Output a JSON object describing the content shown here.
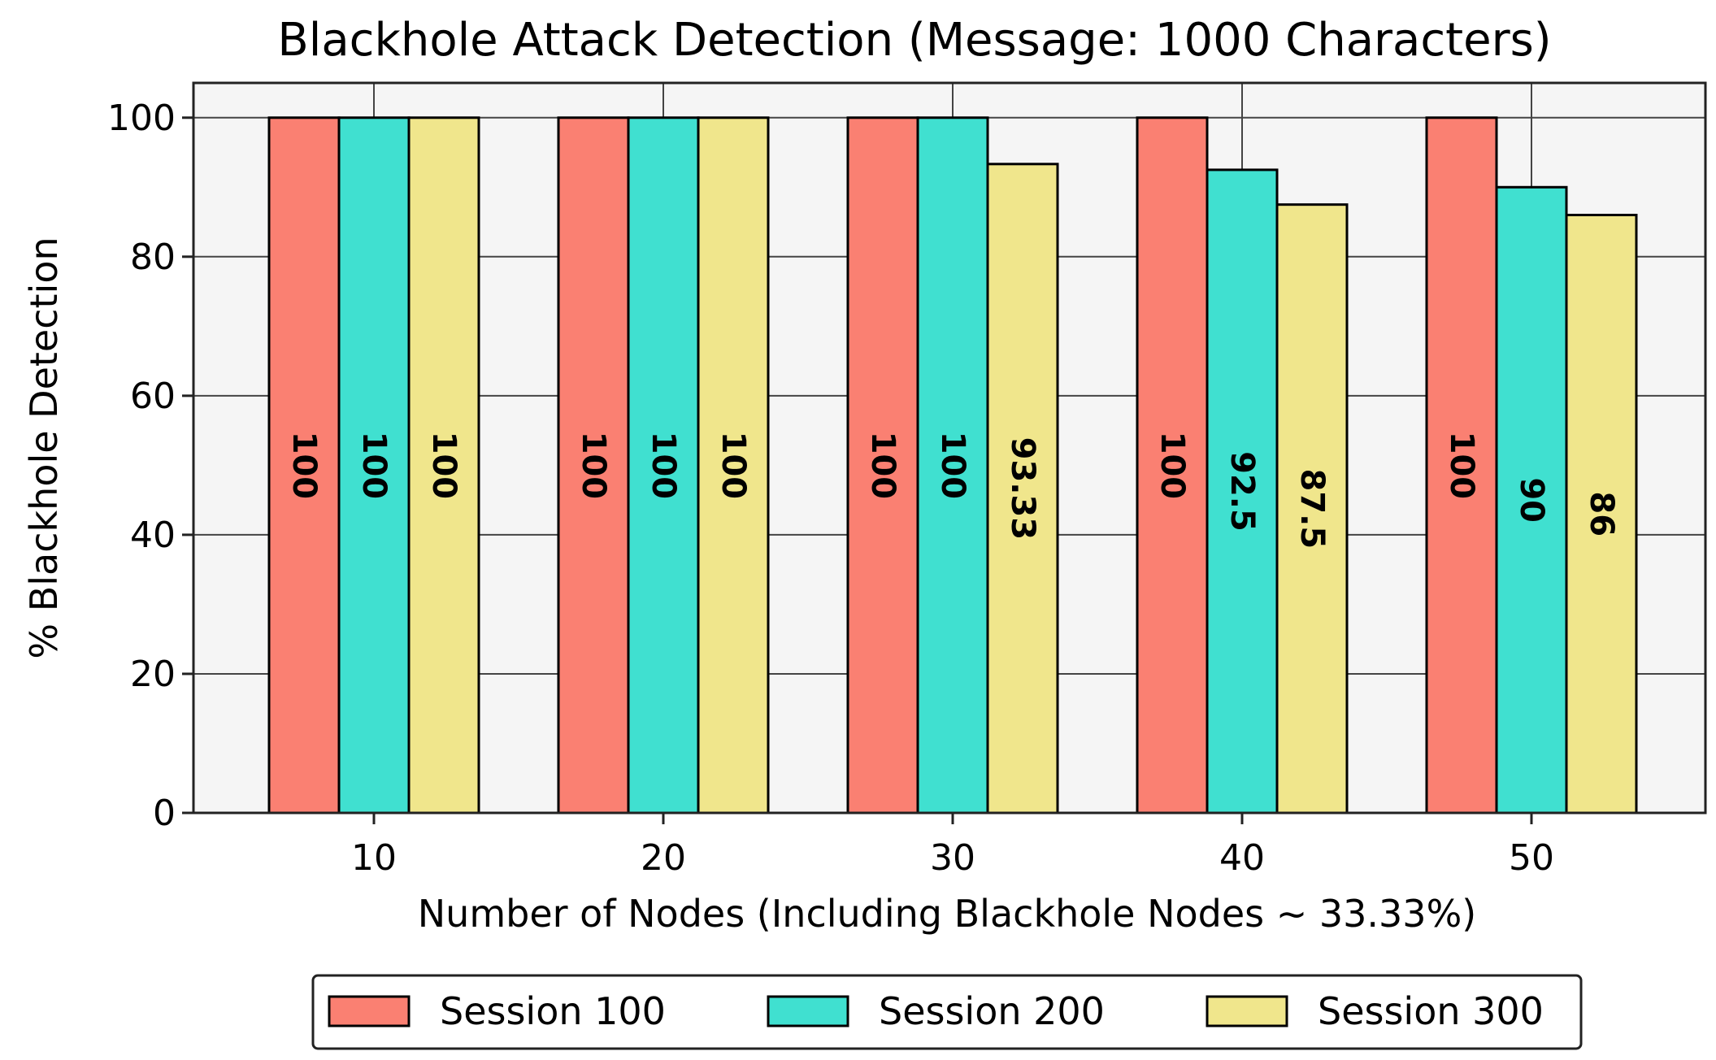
{
  "chart_data": {
    "type": "bar",
    "title": "Blackhole Attack Detection (Message: 1000 Characters)",
    "xlabel": "Number of Nodes (Including Blackhole Nodes ~ 33.33%)",
    "ylabel": "% Blackhole Detection",
    "categories": [
      "10",
      "20",
      "30",
      "40",
      "50"
    ],
    "ylim": [
      0,
      105
    ],
    "yticks": [
      "0",
      "20",
      "40",
      "60",
      "80",
      "100"
    ],
    "grid": true,
    "legend_position": "bottom",
    "series": [
      {
        "name": "Session 100",
        "color": "#FA8072",
        "values": [
          100,
          100,
          100,
          100,
          100
        ],
        "labels": [
          "100",
          "100",
          "100",
          "100",
          "100"
        ]
      },
      {
        "name": "Session 200",
        "color": "#40E0D0",
        "values": [
          100,
          100,
          100,
          92.5,
          90
        ],
        "labels": [
          "100",
          "100",
          "100",
          "92.5",
          "90"
        ]
      },
      {
        "name": "Session 300",
        "color": "#F0E68C",
        "values": [
          100,
          100,
          93.33,
          87.5,
          86
        ],
        "labels": [
          "100",
          "100",
          "93.33",
          "87.5",
          "86"
        ]
      }
    ]
  }
}
